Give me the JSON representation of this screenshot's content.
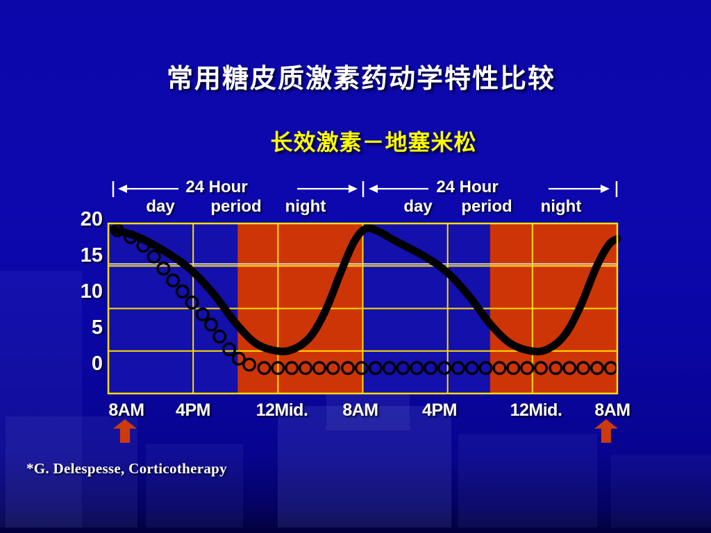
{
  "slide": {
    "title": "常用糖皮质激素药动学特性比较",
    "subtitle": "长效激素－地塞米松",
    "citation": "*G. Delespesse, Corticotherapy"
  },
  "colors": {
    "background": "#0b07a9",
    "background_bottom": "#02013a",
    "title": "#ffffff",
    "subtitle": "#ffff00",
    "label_text": "#ffffff",
    "grid": "#ffdf00",
    "day_region": "#1310ab",
    "night_region": "#cd3506",
    "curve": "#000000",
    "marker": "#000000",
    "dose_arrow": "#cc3a0e"
  },
  "chart_data": {
    "type": "line",
    "x_axis": {
      "range_hours": [
        0,
        48
      ],
      "tick_hours": [
        0,
        8,
        16,
        24,
        32,
        40,
        48
      ],
      "tick_labels": [
        "8AM",
        "4PM",
        "12Mid.",
        "8AM",
        "4PM",
        "12Mid.",
        "8AM"
      ]
    },
    "y_axis": {
      "range": [
        0,
        20
      ],
      "tick_values": [
        20,
        15,
        10,
        5,
        0
      ],
      "tick_labels": [
        "20",
        "15",
        "10",
        "5",
        "0"
      ]
    },
    "annotations": {
      "span_rows": [
        "24 Hour",
        "24 Hour"
      ],
      "sub_row": [
        "day",
        "period",
        "night",
        "day",
        "period",
        "night"
      ]
    },
    "regions": [
      {
        "name": "day",
        "from_hour": 0,
        "to_hour": 12.2
      },
      {
        "name": "night",
        "from_hour": 12.2,
        "to_hour": 24
      },
      {
        "name": "day",
        "from_hour": 24,
        "to_hour": 36
      },
      {
        "name": "night",
        "from_hour": 36,
        "to_hour": 48
      }
    ],
    "dose_marker_hours": [
      0,
      48
    ],
    "series": [
      {
        "name": "thick_solid_curve",
        "style": "solid",
        "points": [
          [
            0.5,
            19.3
          ],
          [
            3,
            18.3
          ],
          [
            6,
            16.2
          ],
          [
            8,
            14.3
          ],
          [
            10,
            11.6
          ],
          [
            12,
            8.3
          ],
          [
            13.8,
            6.0
          ],
          [
            15.5,
            5.1
          ],
          [
            17.2,
            5.1
          ],
          [
            19,
            6.6
          ],
          [
            20.5,
            9.8
          ],
          [
            22,
            14.5
          ],
          [
            23.2,
            17.9
          ],
          [
            24.3,
            19.4
          ],
          [
            25.6,
            19.0
          ],
          [
            27,
            18.0
          ],
          [
            30,
            16.0
          ],
          [
            32,
            14.2
          ],
          [
            34,
            11.5
          ],
          [
            36,
            8.2
          ],
          [
            37.8,
            6.0
          ],
          [
            39.5,
            5.1
          ],
          [
            41.2,
            5.1
          ],
          [
            43,
            6.8
          ],
          [
            44.5,
            10.2
          ],
          [
            46,
            14.8
          ],
          [
            47.2,
            17.5
          ],
          [
            48,
            18.2
          ]
        ]
      },
      {
        "name": "open_circle_markers",
        "style": "circles",
        "points": [
          [
            0.85,
            19.2
          ],
          [
            2.1,
            18.4
          ],
          [
            3.3,
            17.4
          ],
          [
            4.3,
            16.1
          ],
          [
            5.2,
            14.7
          ],
          [
            6.1,
            13.3
          ],
          [
            7.0,
            12.0
          ],
          [
            7.9,
            10.7
          ],
          [
            8.9,
            9.3
          ],
          [
            9.7,
            8.1
          ],
          [
            10.5,
            6.7
          ],
          [
            11.4,
            5.2
          ],
          [
            12.3,
            4.1
          ],
          [
            13.3,
            3.4
          ],
          [
            14.7,
            3.0
          ],
          [
            16.0,
            3.0
          ],
          [
            17.3,
            3.0
          ],
          [
            18.6,
            3.0
          ],
          [
            19.9,
            3.0
          ],
          [
            21.2,
            3.0
          ],
          [
            22.6,
            3.0
          ],
          [
            23.9,
            3.0
          ],
          [
            25.2,
            3.0
          ],
          [
            26.5,
            3.0
          ],
          [
            27.8,
            3.0
          ],
          [
            29.1,
            3.0
          ],
          [
            30.4,
            3.0
          ],
          [
            31.7,
            3.0
          ],
          [
            33.0,
            3.0
          ],
          [
            34.3,
            3.0
          ],
          [
            35.6,
            3.0
          ],
          [
            36.9,
            3.0
          ],
          [
            38.2,
            3.0
          ],
          [
            39.5,
            3.0
          ],
          [
            40.8,
            3.0
          ],
          [
            42.2,
            3.0
          ],
          [
            43.5,
            3.0
          ],
          [
            44.8,
            3.0
          ],
          [
            46.1,
            3.0
          ],
          [
            47.4,
            3.0
          ]
        ]
      }
    ]
  }
}
